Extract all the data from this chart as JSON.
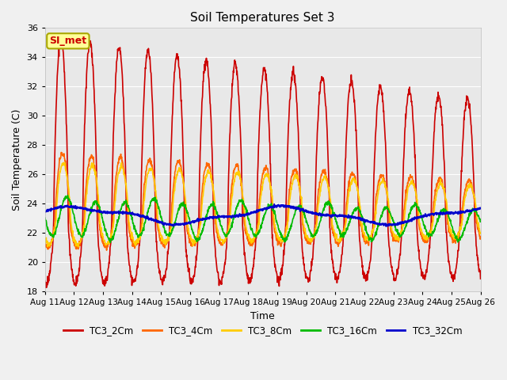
{
  "title": "Soil Temperatures Set 3",
  "xlabel": "Time",
  "ylabel": "Soil Temperature (C)",
  "ylim": [
    18,
    36
  ],
  "yticks": [
    18,
    20,
    22,
    24,
    26,
    28,
    30,
    32,
    34,
    36
  ],
  "x_tick_labels": [
    "Aug 11",
    "Aug 12",
    "Aug 13",
    "Aug 14",
    "Aug 15",
    "Aug 16",
    "Aug 17",
    "Aug 18",
    "Aug 19",
    "Aug 20",
    "Aug 21",
    "Aug 22",
    "Aug 23",
    "Aug 24",
    "Aug 25",
    "Aug 26"
  ],
  "annotation_text": "SI_met",
  "annotation_box_color": "#ffff99",
  "annotation_text_color": "#cc0000",
  "annotation_border_color": "#aaa800",
  "series": [
    {
      "label": "TC3_2Cm",
      "color": "#cc0000",
      "linewidth": 1.2
    },
    {
      "label": "TC3_4Cm",
      "color": "#ff6600",
      "linewidth": 1.2
    },
    {
      "label": "TC3_8Cm",
      "color": "#ffcc00",
      "linewidth": 1.2
    },
    {
      "label": "TC3_16Cm",
      "color": "#00bb00",
      "linewidth": 1.2
    },
    {
      "label": "TC3_32Cm",
      "color": "#0000cc",
      "linewidth": 1.5
    }
  ],
  "bg_color": "#f0f0f0",
  "plot_bg_color": "#e8e8e8",
  "grid_color": "#ffffff"
}
